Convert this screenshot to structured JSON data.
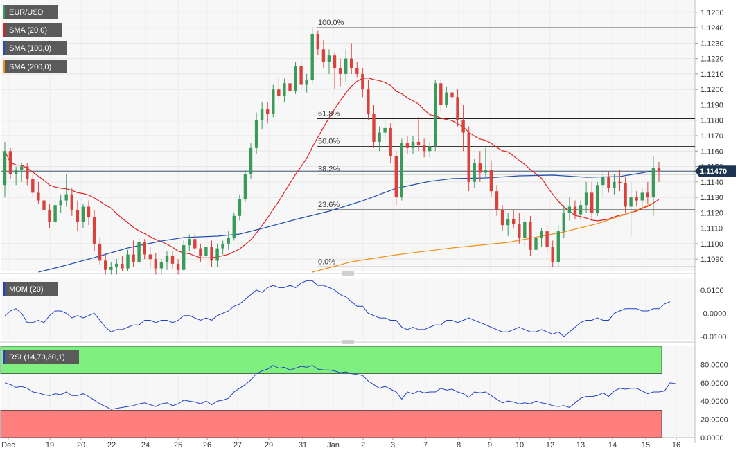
{
  "chart_data": [
    {
      "type": "candlestick",
      "symbol": "EUR/USD",
      "last_price": "1.11470",
      "ylim": [
        1.1082,
        1.1258
      ],
      "y_ticks": [
        "1.1090",
        "1.1100",
        "1.1110",
        "1.1120",
        "1.1130",
        "1.1140",
        "1.1150",
        "1.1160",
        "1.1170",
        "1.1180",
        "1.1190",
        "1.1200",
        "1.1210",
        "1.1220",
        "1.1230",
        "1.1240",
        "1.1250"
      ],
      "x_ticks": [
        "Dec",
        "19",
        "20",
        "22",
        "24",
        "25",
        "26",
        "27",
        "29",
        "31",
        "Jan",
        "2",
        "3",
        "7",
        "8",
        "9",
        "10",
        "12",
        "13",
        "14",
        "15",
        "16"
      ],
      "indicators": [
        {
          "label": "SMA (20,0)",
          "color": "#e02020"
        },
        {
          "label": "SMA (100,0)",
          "color": "#2050b0"
        },
        {
          "label": "SMA (200,0)",
          "color": "#f0901c"
        }
      ],
      "fibonacci": [
        {
          "label": "100.0%",
          "value": 1.124
        },
        {
          "label": "61.8%",
          "value": 1.1181
        },
        {
          "label": "50.0%",
          "value": 1.1163
        },
        {
          "label": "38.2%",
          "value": 1.1145
        },
        {
          "label": "23.6%",
          "value": 1.1122
        },
        {
          "label": "0.0%",
          "value": 1.1085
        }
      ],
      "current_price_line": 1.1147,
      "candles": [
        [
          1.1138,
          1.1166,
          1.113,
          1.116
        ],
        [
          1.116,
          1.1162,
          1.1142,
          1.1145
        ],
        [
          1.1145,
          1.115,
          1.1138,
          1.1148
        ],
        [
          1.1148,
          1.1152,
          1.114,
          1.115
        ],
        [
          1.115,
          1.1152,
          1.1138,
          1.1142
        ],
        [
          1.1142,
          1.1145,
          1.113,
          1.1133
        ],
        [
          1.1133,
          1.114,
          1.1126,
          1.1128
        ],
        [
          1.1128,
          1.1132,
          1.1118,
          1.1122
        ],
        [
          1.1122,
          1.1126,
          1.111,
          1.1114
        ],
        [
          1.1114,
          1.1128,
          1.1112,
          1.1125
        ],
        [
          1.1125,
          1.1132,
          1.112,
          1.1128
        ],
        [
          1.1128,
          1.1145,
          1.1124,
          1.1132
        ],
        [
          1.1132,
          1.1136,
          1.1118,
          1.1122
        ],
        [
          1.1122,
          1.1128,
          1.1108,
          1.1114
        ],
        [
          1.1114,
          1.1126,
          1.111,
          1.1124
        ],
        [
          1.1124,
          1.1128,
          1.1112,
          1.1117
        ],
        [
          1.1117,
          1.1122,
          1.1095,
          1.11
        ],
        [
          1.11,
          1.1104,
          1.1086,
          1.1089
        ],
        [
          1.1089,
          1.1094,
          1.108,
          1.1083
        ],
        [
          1.1083,
          1.1088,
          1.108,
          1.1085
        ],
        [
          1.1085,
          1.109,
          1.108,
          1.1087
        ],
        [
          1.1087,
          1.1092,
          1.1082,
          1.1084
        ],
        [
          1.1084,
          1.1096,
          1.1082,
          1.1093
        ],
        [
          1.1093,
          1.1102,
          1.1085,
          1.1088
        ],
        [
          1.1088,
          1.1104,
          1.1086,
          1.1101
        ],
        [
          1.1101,
          1.1103,
          1.109,
          1.1093
        ],
        [
          1.1093,
          1.1098,
          1.1084,
          1.109
        ],
        [
          1.109,
          1.1094,
          1.108,
          1.1084
        ],
        [
          1.1084,
          1.109,
          1.108,
          1.1088
        ],
        [
          1.1088,
          1.1095,
          1.1083,
          1.1092
        ],
        [
          1.1092,
          1.1095,
          1.1084,
          1.1087
        ],
        [
          1.1087,
          1.109,
          1.108,
          1.1083
        ],
        [
          1.1083,
          1.1102,
          1.1082,
          1.1099
        ],
        [
          1.1099,
          1.1106,
          1.1095,
          1.1103
        ],
        [
          1.1103,
          1.1107,
          1.1094,
          1.1097
        ],
        [
          1.1097,
          1.11,
          1.1088,
          1.1092
        ],
        [
          1.1092,
          1.11,
          1.109,
          1.1098
        ],
        [
          1.1098,
          1.1102,
          1.1085,
          1.1089
        ],
        [
          1.1089,
          1.11,
          1.1085,
          1.1097
        ],
        [
          1.1097,
          1.1102,
          1.1093,
          1.11
        ],
        [
          1.11,
          1.1108,
          1.1096,
          1.1104
        ],
        [
          1.1104,
          1.112,
          1.1102,
          1.1118
        ],
        [
          1.1118,
          1.1132,
          1.1115,
          1.1129
        ],
        [
          1.1129,
          1.1148,
          1.1127,
          1.1145
        ],
        [
          1.1145,
          1.1165,
          1.1142,
          1.1162
        ],
        [
          1.1162,
          1.1185,
          1.1158,
          1.118
        ],
        [
          1.118,
          1.1192,
          1.1174,
          1.1187
        ],
        [
          1.1187,
          1.1192,
          1.1178,
          1.1184
        ],
        [
          1.1184,
          1.1203,
          1.1182,
          1.12
        ],
        [
          1.12,
          1.1208,
          1.1193,
          1.1196
        ],
        [
          1.1196,
          1.1207,
          1.1192,
          1.1204
        ],
        [
          1.1204,
          1.121,
          1.1197,
          1.1199
        ],
        [
          1.1199,
          1.1218,
          1.1197,
          1.1215
        ],
        [
          1.1215,
          1.122,
          1.12,
          1.1203
        ],
        [
          1.1203,
          1.121,
          1.1198,
          1.1206
        ],
        [
          1.1206,
          1.124,
          1.1204,
          1.1236
        ],
        [
          1.1236,
          1.1238,
          1.1222,
          1.1226
        ],
        [
          1.1226,
          1.1232,
          1.1214,
          1.1218
        ],
        [
          1.1218,
          1.1226,
          1.121,
          1.1222
        ],
        [
          1.1222,
          1.1224,
          1.12,
          1.1214
        ],
        [
          1.1214,
          1.122,
          1.1202,
          1.121
        ],
        [
          1.121,
          1.1226,
          1.1205,
          1.122
        ],
        [
          1.122,
          1.123,
          1.121,
          1.1214
        ],
        [
          1.1214,
          1.1218,
          1.1208,
          1.121
        ],
        [
          1.121,
          1.1214,
          1.1195,
          1.12
        ],
        [
          1.12,
          1.1206,
          1.118,
          1.1184
        ],
        [
          1.1184,
          1.119,
          1.1162,
          1.1166
        ],
        [
          1.1166,
          1.1176,
          1.116,
          1.1172
        ],
        [
          1.1172,
          1.118,
          1.1168,
          1.1175
        ],
        [
          1.1175,
          1.1178,
          1.1152,
          1.1157
        ],
        [
          1.1157,
          1.116,
          1.1125,
          1.113
        ],
        [
          1.113,
          1.1168,
          1.1128,
          1.1165
        ],
        [
          1.1165,
          1.117,
          1.1158,
          1.1162
        ],
        [
          1.1162,
          1.117,
          1.1158,
          1.1166
        ],
        [
          1.1166,
          1.1182,
          1.116,
          1.1164
        ],
        [
          1.1164,
          1.1168,
          1.1156,
          1.116
        ],
        [
          1.116,
          1.1166,
          1.1156,
          1.1163
        ],
        [
          1.1163,
          1.1206,
          1.116,
          1.1204
        ],
        [
          1.1204,
          1.1206,
          1.1186,
          1.119
        ],
        [
          1.119,
          1.1202,
          1.1188,
          1.1198
        ],
        [
          1.1198,
          1.1203,
          1.1185,
          1.1195
        ],
        [
          1.1195,
          1.12,
          1.1176,
          1.118
        ],
        [
          1.118,
          1.119,
          1.116,
          1.1172
        ],
        [
          1.1172,
          1.1176,
          1.1134,
          1.114
        ],
        [
          1.114,
          1.1155,
          1.1136,
          1.1152
        ],
        [
          1.1152,
          1.116,
          1.114,
          1.1146
        ],
        [
          1.1146,
          1.1162,
          1.1143,
          1.1148
        ],
        [
          1.1148,
          1.1154,
          1.113,
          1.1134
        ],
        [
          1.1134,
          1.1138,
          1.1118,
          1.1122
        ],
        [
          1.1122,
          1.1125,
          1.1108,
          1.1112
        ],
        [
          1.1112,
          1.112,
          1.1105,
          1.1116
        ],
        [
          1.1116,
          1.1122,
          1.111,
          1.1113
        ],
        [
          1.1113,
          1.112,
          1.11,
          1.1104
        ],
        [
          1.1104,
          1.1118,
          1.1098,
          1.1114
        ],
        [
          1.1114,
          1.1118,
          1.1092,
          1.1096
        ],
        [
          1.1096,
          1.1108,
          1.1094,
          1.1104
        ],
        [
          1.1104,
          1.111,
          1.1098,
          1.1108
        ],
        [
          1.1108,
          1.1112,
          1.1094,
          1.1098
        ],
        [
          1.1098,
          1.1102,
          1.1085,
          1.1088
        ],
        [
          1.1088,
          1.1112,
          1.1085,
          1.1108
        ],
        [
          1.1108,
          1.1125,
          1.1104,
          1.112
        ],
        [
          1.112,
          1.113,
          1.1115,
          1.1124
        ],
        [
          1.1124,
          1.1128,
          1.1116,
          1.1119
        ],
        [
          1.1119,
          1.1128,
          1.1116,
          1.1125
        ],
        [
          1.1125,
          1.114,
          1.112,
          1.1133
        ],
        [
          1.1133,
          1.114,
          1.1115,
          1.112
        ],
        [
          1.112,
          1.114,
          1.1118,
          1.1138
        ],
        [
          1.1138,
          1.1148,
          1.113,
          1.1143
        ],
        [
          1.1143,
          1.1147,
          1.1133,
          1.1136
        ],
        [
          1.1136,
          1.1145,
          1.1132,
          1.114
        ],
        [
          1.114,
          1.1148,
          1.1134,
          1.1139
        ],
        [
          1.1139,
          1.1143,
          1.112,
          1.1124
        ],
        [
          1.1124,
          1.114,
          1.1105,
          1.113
        ],
        [
          1.113,
          1.1134,
          1.1124,
          1.1128
        ],
        [
          1.1128,
          1.1136,
          1.1124,
          1.1133
        ],
        [
          1.1133,
          1.114,
          1.1126,
          1.113
        ],
        [
          1.113,
          1.1157,
          1.1118,
          1.1149
        ],
        [
          1.1149,
          1.1153,
          1.114,
          1.1147
        ]
      ]
    },
    {
      "type": "line",
      "label": "MOM (20)",
      "ylim": [
        -0.0115,
        0.015
      ],
      "y_ticks": [
        "0.0100",
        "-0.0000",
        "-0.0100"
      ],
      "values": [
        -0.001,
        0.001,
        0.002,
        0.0,
        -0.004,
        -0.004,
        -0.003,
        -0.004,
        -0.001,
        0.001,
        0.001,
        0.0,
        -0.002,
        -0.001,
        -0.002,
        -0.001,
        0.0,
        -0.003,
        -0.006,
        -0.008,
        -0.007,
        -0.007,
        -0.006,
        -0.005,
        -0.005,
        -0.003,
        -0.003,
        -0.004,
        -0.003,
        -0.003,
        -0.004,
        -0.003,
        -0.001,
        -0.001,
        -0.002,
        -0.003,
        -0.002,
        -0.003,
        -0.001,
        0.0,
        0.001,
        0.003,
        0.004,
        0.006,
        0.008,
        0.01,
        0.009,
        0.011,
        0.012,
        0.011,
        0.011,
        0.012,
        0.011,
        0.013,
        0.014,
        0.014,
        0.012,
        0.012,
        0.011,
        0.01,
        0.008,
        0.007,
        0.005,
        0.003,
        0.003,
        0.0,
        -0.001,
        -0.002,
        -0.002,
        -0.003,
        -0.003,
        -0.006,
        -0.007,
        -0.006,
        -0.007,
        -0.007,
        -0.006,
        -0.005,
        -0.005,
        -0.003,
        -0.003,
        -0.004,
        -0.003,
        -0.002,
        -0.003,
        -0.004,
        -0.005,
        -0.006,
        -0.007,
        -0.008,
        -0.008,
        -0.007,
        -0.006,
        -0.007,
        -0.008,
        -0.008,
        -0.007,
        -0.008,
        -0.009,
        -0.008,
        -0.01,
        -0.008,
        -0.006,
        -0.004,
        -0.003,
        -0.003,
        -0.002,
        -0.003,
        -0.003,
        0.0,
        0.001,
        0.002,
        0.002,
        0.002,
        0.001,
        0.001,
        0.002,
        0.002,
        0.004,
        0.005
      ]
    },
    {
      "type": "line",
      "label": "RSI (14,70,30,1)",
      "ylim": [
        0,
        100
      ],
      "y_ticks": [
        "0.0000",
        "20.0000",
        "40.0000",
        "60.0000",
        "80.0000"
      ],
      "bands": {
        "overbought": 70,
        "oversold": 30
      },
      "values": [
        60,
        58,
        55,
        56,
        54,
        50,
        49,
        47,
        46,
        48,
        47,
        50,
        46,
        46,
        48,
        45,
        41,
        37,
        34,
        31,
        32,
        33,
        34,
        35,
        37,
        38,
        36,
        34,
        37,
        38,
        35,
        37,
        41,
        40,
        39,
        37,
        40,
        36,
        40,
        41,
        43,
        50,
        54,
        58,
        63,
        70,
        73,
        75,
        79,
        76,
        77,
        74,
        76,
        78,
        77,
        79,
        75,
        74,
        74,
        73,
        71,
        72,
        70,
        69,
        68,
        62,
        58,
        54,
        56,
        53,
        50,
        42,
        50,
        48,
        51,
        49,
        50,
        50,
        54,
        52,
        53,
        50,
        48,
        44,
        50,
        49,
        50,
        46,
        42,
        38,
        40,
        39,
        37,
        38,
        37,
        40,
        38,
        37,
        35,
        34,
        35,
        33,
        38,
        43,
        45,
        45,
        46,
        49,
        45,
        51,
        54,
        53,
        54,
        54,
        51,
        48,
        50,
        50,
        51,
        60,
        59
      ]
    }
  ]
}
